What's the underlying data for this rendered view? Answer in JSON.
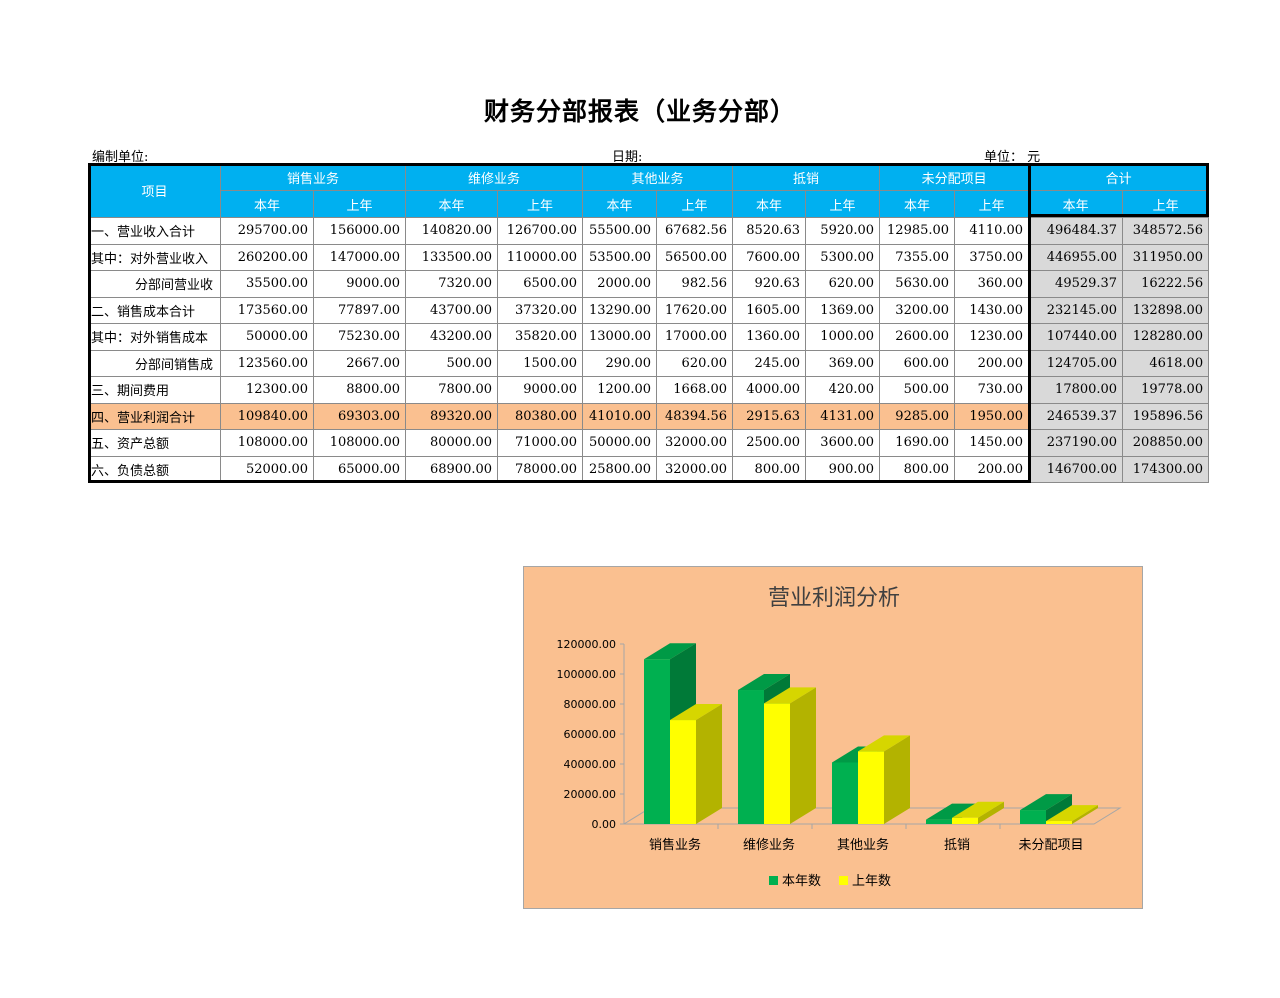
{
  "title": "财务分部报表（业务分部）",
  "meta": {
    "company_label": "编制单位:",
    "date_label": "日期:",
    "unit_label": "单位：",
    "unit_value": "元"
  },
  "table": {
    "item_header": "项目",
    "groups": [
      "销售业务",
      "维修业务",
      "其他业务",
      "抵销",
      "未分配项目",
      "合计"
    ],
    "sub_headers": [
      "本年",
      "上年"
    ],
    "rows": [
      {
        "label": "一、营业收入合计",
        "indent": false,
        "values": [
          "295700.00",
          "156000.00",
          "140820.00",
          "126700.00",
          "55500.00",
          "67682.56",
          "8520.63",
          "5920.00",
          "12985.00",
          "4110.00",
          "496484.37",
          "348572.56"
        ]
      },
      {
        "label": "其中：对外营业收入",
        "indent": false,
        "values": [
          "260200.00",
          "147000.00",
          "133500.00",
          "110000.00",
          "53500.00",
          "56500.00",
          "7600.00",
          "5300.00",
          "7355.00",
          "3750.00",
          "446955.00",
          "311950.00"
        ]
      },
      {
        "label": "分部间营业收",
        "indent": true,
        "values": [
          "35500.00",
          "9000.00",
          "7320.00",
          "6500.00",
          "2000.00",
          "982.56",
          "920.63",
          "620.00",
          "5630.00",
          "360.00",
          "49529.37",
          "16222.56"
        ]
      },
      {
        "label": "二、销售成本合计",
        "indent": false,
        "values": [
          "173560.00",
          "77897.00",
          "43700.00",
          "37320.00",
          "13290.00",
          "17620.00",
          "1605.00",
          "1369.00",
          "3200.00",
          "1430.00",
          "232145.00",
          "132898.00"
        ]
      },
      {
        "label": "其中：对外销售成本",
        "indent": false,
        "values": [
          "50000.00",
          "75230.00",
          "43200.00",
          "35820.00",
          "13000.00",
          "17000.00",
          "1360.00",
          "1000.00",
          "2600.00",
          "1230.00",
          "107440.00",
          "128280.00"
        ]
      },
      {
        "label": "分部间销售成",
        "indent": true,
        "values": [
          "123560.00",
          "2667.00",
          "500.00",
          "1500.00",
          "290.00",
          "620.00",
          "245.00",
          "369.00",
          "600.00",
          "200.00",
          "124705.00",
          "4618.00"
        ]
      },
      {
        "label": "三、期间费用",
        "indent": false,
        "values": [
          "12300.00",
          "8800.00",
          "7800.00",
          "9000.00",
          "1200.00",
          "1668.00",
          "4000.00",
          "420.00",
          "500.00",
          "730.00",
          "17800.00",
          "19778.00"
        ]
      },
      {
        "label": "四、营业利润合计",
        "indent": false,
        "highlight": true,
        "values": [
          "109840.00",
          "69303.00",
          "89320.00",
          "80380.00",
          "41010.00",
          "48394.56",
          "2915.63",
          "4131.00",
          "9285.00",
          "1950.00",
          "246539.37",
          "195896.56"
        ]
      },
      {
        "label": "五、资产总额",
        "indent": false,
        "values": [
          "108000.00",
          "108000.00",
          "80000.00",
          "71000.00",
          "50000.00",
          "32000.00",
          "2500.00",
          "3600.00",
          "1690.00",
          "1450.00",
          "237190.00",
          "208850.00"
        ]
      },
      {
        "label": "六、负债总额",
        "indent": false,
        "values": [
          "52000.00",
          "65000.00",
          "68900.00",
          "78000.00",
          "25800.00",
          "32000.00",
          "800.00",
          "900.00",
          "800.00",
          "200.00",
          "146700.00",
          "174300.00"
        ]
      }
    ]
  },
  "chart_data": {
    "type": "bar",
    "title": "营业利润分析",
    "categories": [
      "销售业务",
      "维修业务",
      "其他业务",
      "抵销",
      "未分配项目"
    ],
    "series": [
      {
        "name": "本年数",
        "values": [
          109840,
          89320,
          41010,
          2915.63,
          9285
        ],
        "color": "#00b050",
        "side_color": "#007a38",
        "top_color": "#009a46"
      },
      {
        "name": "上年数",
        "values": [
          69303,
          80380,
          48394.56,
          4131,
          1950
        ],
        "color": "#ffff00",
        "side_color": "#b3b300",
        "top_color": "#d6d600"
      }
    ],
    "yticks": [
      "0.00",
      "20000.00",
      "40000.00",
      "60000.00",
      "80000.00",
      "100000.00",
      "120000.00"
    ],
    "ylim": [
      0,
      120000
    ],
    "legend": "bottom",
    "background": "#fac090"
  }
}
